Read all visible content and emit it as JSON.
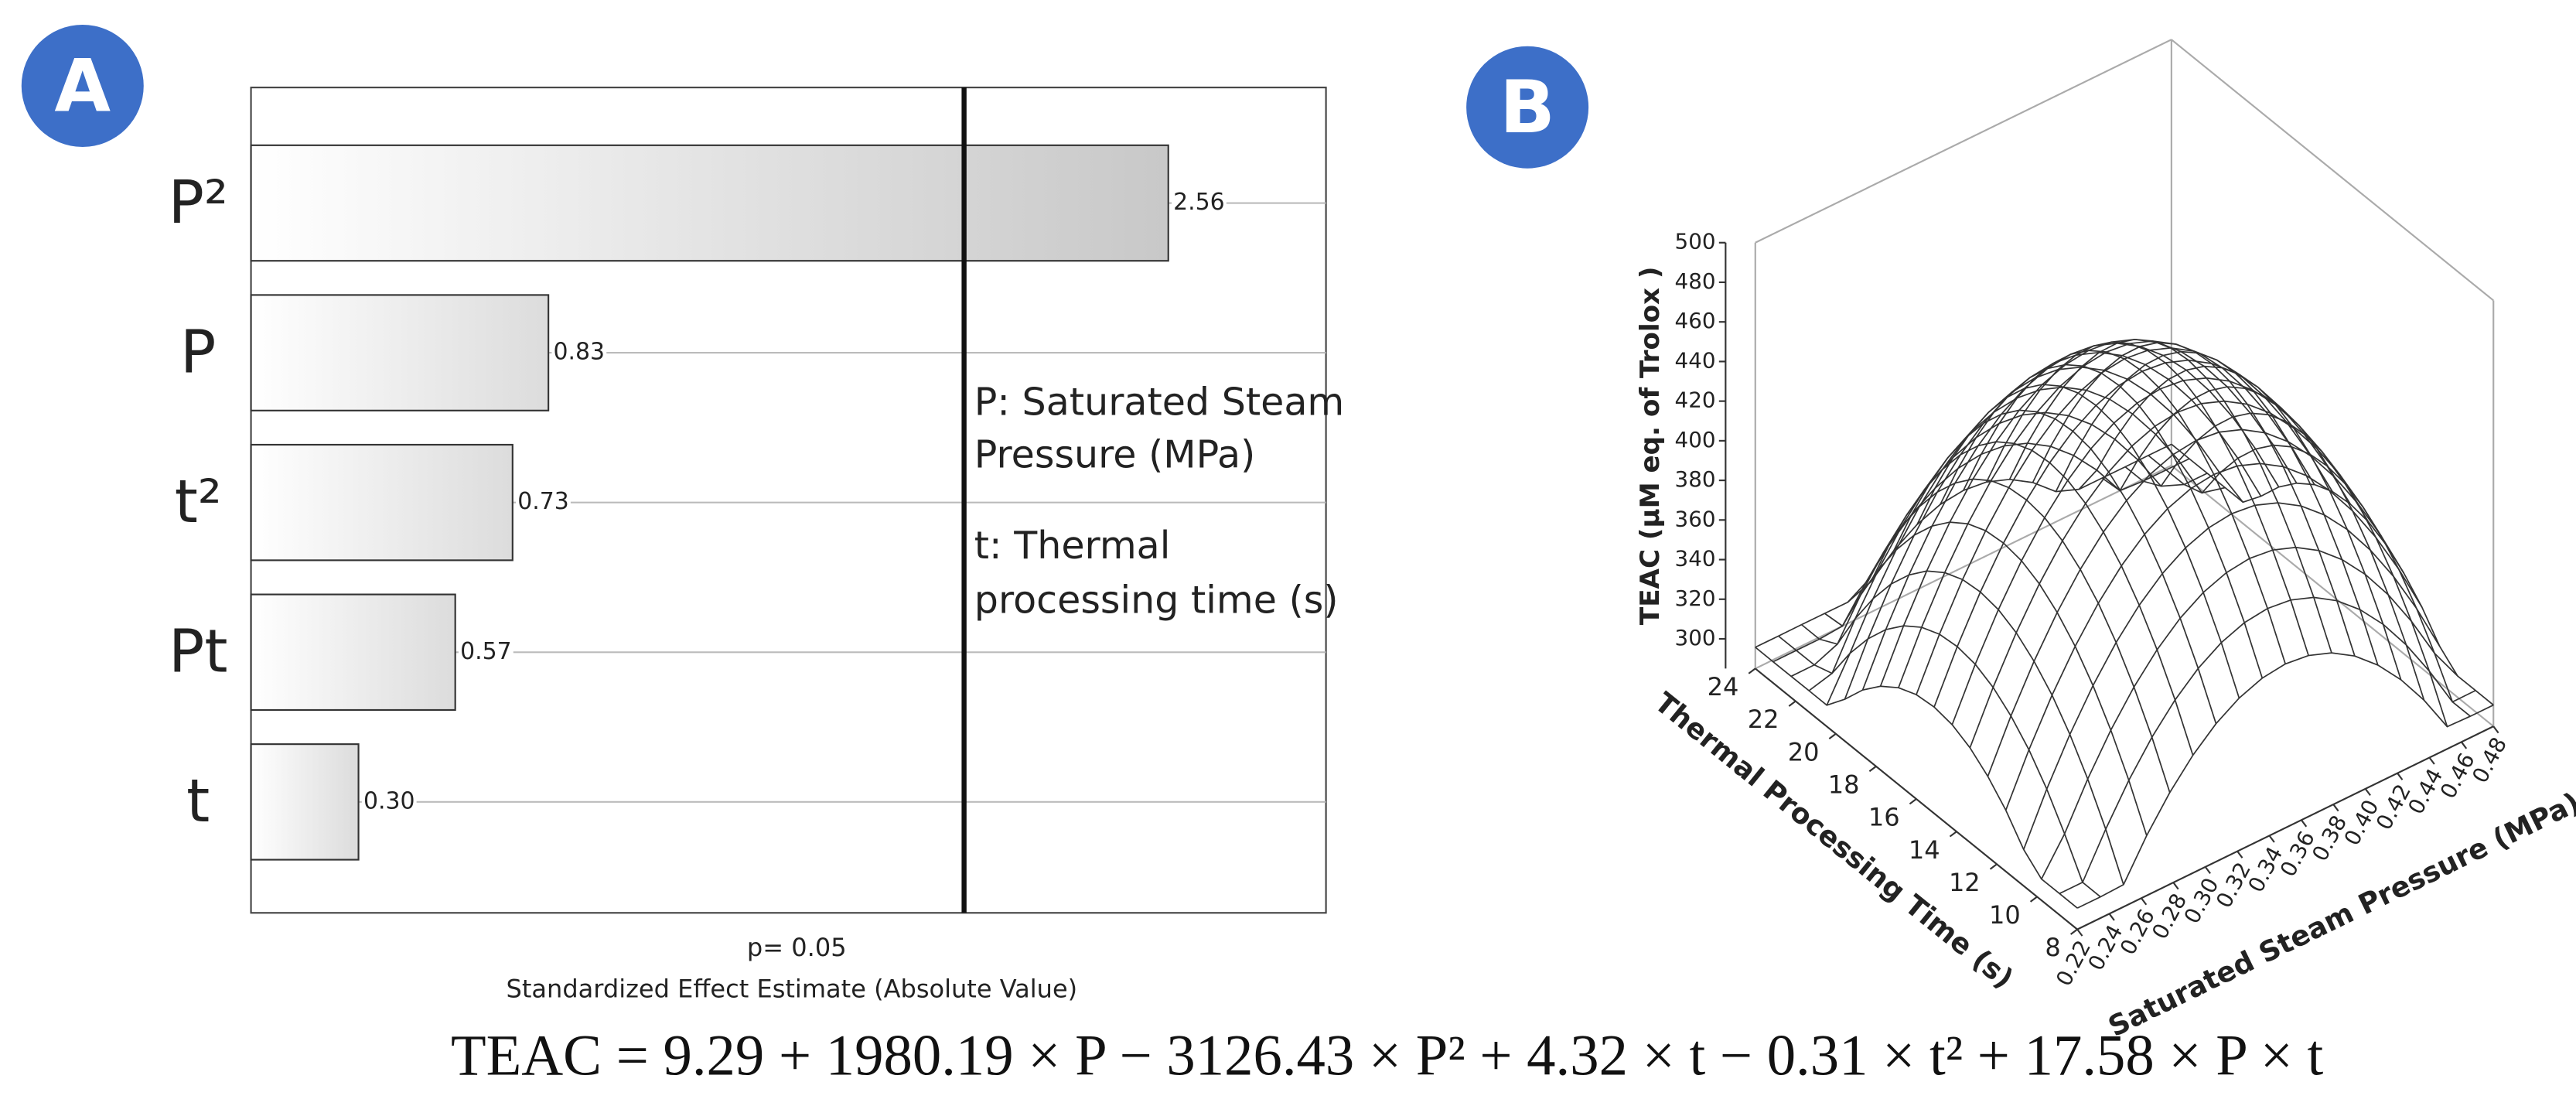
{
  "panel_labels": [
    "A",
    "B"
  ],
  "equation": "TEAC = 9.29 + 1980.19 × P − 3126.43 × P² + 4.32 × t − 0.31 × t² + 17.58 × P × t",
  "chart_data": [
    {
      "type": "bar",
      "orientation": "horizontal",
      "categories": [
        "P²",
        "P",
        "t²",
        "Pt",
        "t"
      ],
      "values": [
        2.56,
        0.83,
        0.73,
        0.57,
        0.3
      ],
      "value_labels": [
        "2.56",
        "0.83",
        "0.73",
        "0.57",
        "0.30"
      ],
      "xlim": [
        0,
        3
      ],
      "xlabel": "Standardized Effect Estimate (Absolute Value)",
      "threshold": {
        "value": 1.99,
        "label": "p= 0.05"
      },
      "annotations": [
        "P: Saturated Steam",
        "Pressure (MPa)",
        "t: Thermal",
        "processing time (s)"
      ],
      "grid": true
    },
    {
      "type": "surface",
      "zlabel": "TEAC (µM eq. of Trolox )",
      "xlabel": "Thermal Processing Time (s)",
      "ylabel": "Saturated Steam Pressure (MPa)",
      "xlim": [
        8,
        24
      ],
      "xticks": [
        24,
        22,
        20,
        18,
        16,
        14,
        12,
        10,
        8
      ],
      "ylim": [
        0.22,
        0.48
      ],
      "yticks": [
        0.22,
        0.24,
        0.26,
        0.28,
        {
          "value": 0.3,
          "label": "0.30"
        },
        0.32,
        0.34,
        0.36,
        0.38,
        {
          "value": 0.4,
          "label": "0.40"
        },
        0.42,
        0.44,
        0.46,
        0.48
      ],
      "zlim": [
        285,
        500
      ],
      "zticks": [
        300,
        320,
        340,
        360,
        380,
        400,
        420,
        440,
        460,
        480,
        500
      ]
    }
  ]
}
